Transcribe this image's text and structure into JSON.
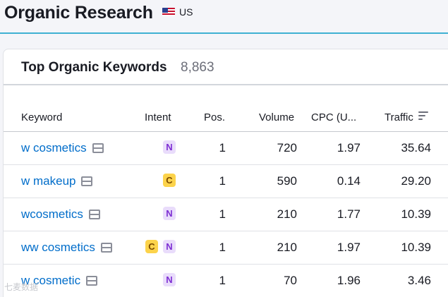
{
  "header": {
    "title": "Organic Research",
    "database": "US"
  },
  "card": {
    "title": "Top Organic Keywords",
    "count": "8,863"
  },
  "columns": {
    "keyword": "Keyword",
    "intent": "Intent",
    "pos": "Pos.",
    "volume": "Volume",
    "cpc": "CPC (U...",
    "traffic": "Traffic"
  },
  "rows": [
    {
      "keyword": "w cosmetics",
      "intents": [
        "N"
      ],
      "pos": "1",
      "volume": "720",
      "cpc": "1.97",
      "traffic": "35.64"
    },
    {
      "keyword": "w makeup",
      "intents": [
        "C"
      ],
      "pos": "1",
      "volume": "590",
      "cpc": "0.14",
      "traffic": "29.20"
    },
    {
      "keyword": "wcosmetics",
      "intents": [
        "N"
      ],
      "pos": "1",
      "volume": "210",
      "cpc": "1.77",
      "traffic": "10.39"
    },
    {
      "keyword": "ww cosmetics",
      "intents": [
        "C",
        "N"
      ],
      "pos": "1",
      "volume": "210",
      "cpc": "1.97",
      "traffic": "10.39"
    },
    {
      "keyword": "w cosmetic",
      "intents": [
        "N"
      ],
      "pos": "1",
      "volume": "70",
      "cpc": "1.96",
      "traffic": "3.46"
    }
  ],
  "colors": {
    "accent_line": "#40b1d3",
    "link": "#006dca",
    "intent_navigational": "#e9dcfb",
    "intent_commercial": "#fcd34b"
  },
  "icons": {
    "flag": "us-flag-icon",
    "serp": "serp-features-icon",
    "sort": "sort-descending-icon"
  },
  "watermark": "七麦数据"
}
